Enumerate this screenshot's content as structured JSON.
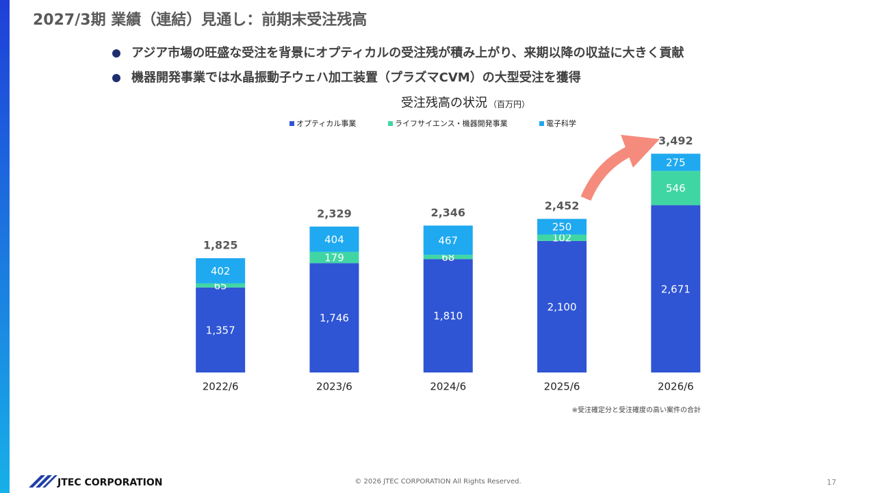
{
  "header": {
    "title": "2027/3期 業績（連結）見通し：前期末受注残高"
  },
  "bullets": [
    "アジア市場の旺盛な受注を背景にオプティカルの受注残が積み上がり、来期以降の収益に大きく貢献",
    "機器開発事業では水晶振動子ウェハ加工装置（プラズマCVM）の大型受注を獲得"
  ],
  "chart_data": {
    "type": "stacked_bar",
    "title": "受注残高の状況",
    "unit": "（百万円）",
    "categories": [
      "2022/6",
      "2023/6",
      "2024/6",
      "2025/6",
      "2026/6"
    ],
    "series": [
      {
        "name": "オプティカル事業",
        "color": "#2f55d4",
        "values": [
          1357,
          1746,
          1810,
          2100,
          2671
        ],
        "value_labels": [
          "1,357",
          "1,746",
          "1,810",
          "2,100",
          "2,671"
        ]
      },
      {
        "name": "ライフサイエンス・機器開発事業",
        "color": "#40d6a4",
        "values": [
          65,
          179,
          68,
          102,
          546
        ]
      },
      {
        "name": "電子科学",
        "color": "#1fa9f0",
        "values": [
          402,
          404,
          467,
          250,
          275
        ]
      }
    ],
    "totals": [
      1825,
      2329,
      2346,
      2452,
      3492
    ],
    "total_labels": [
      "1,825",
      "2,329",
      "2,346",
      "2,452",
      "3,492"
    ],
    "ylim": [
      0,
      4000
    ],
    "legend": "top"
  },
  "footnote": "※受注確定分と受注確度の高い案件の合計",
  "footer": {
    "logo": "JTEC CORPORATION",
    "copyright": "© 2026 JTEC CORPORATION All Rights Reserved.",
    "page": "17"
  }
}
